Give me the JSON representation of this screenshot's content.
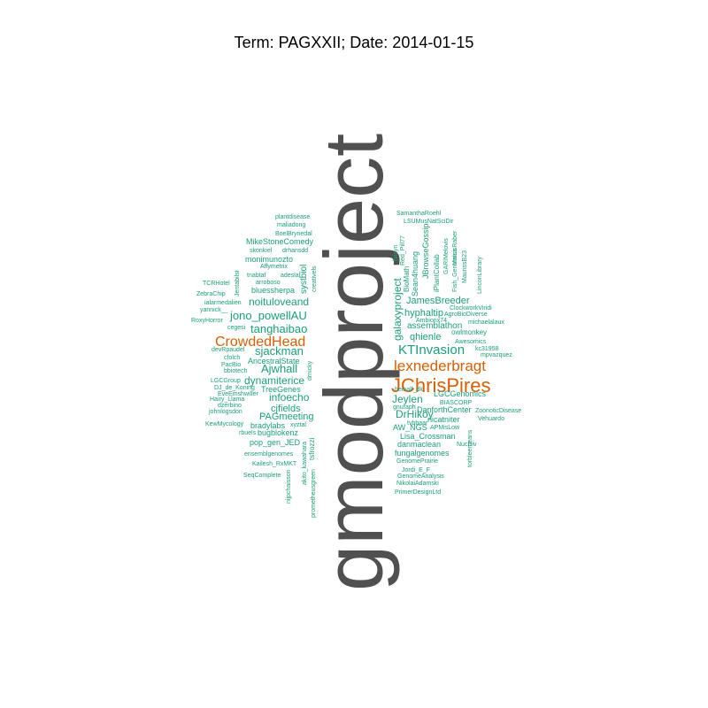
{
  "title": "Term: PAGXXII; Date: 2014-01-15",
  "colors": {
    "grey": "#505050",
    "orange": "#d95f02",
    "green": "#1b9e77"
  },
  "words": {
    "w0": "gmodproject",
    "w1": "JChrisPires",
    "w2": "lexnederbragt",
    "w3": "CrowdedHead",
    "w4": "KTInvasion",
    "w5": "galaxyproject",
    "w6": "jono_powellAU",
    "w7": "tanghaibao",
    "w8": "sjackman",
    "w9": "Ajwhall",
    "w10": "dynamiterice",
    "w11": "infoecho",
    "w12": "cjfields",
    "w13": "PAGmeeting",
    "w14": "noituloveand",
    "w15": "Jeylen",
    "w16": "DrHikoy",
    "w17": "hyphaltip",
    "w18": "qhienle",
    "w19": "JamesBreeder",
    "w20": "assemblathon",
    "w21": "systbiol",
    "w22": "bluessherpa",
    "w23": "monimunozto",
    "w24": "MikeStoneComedy",
    "w25": "bradylabs",
    "w26": "bugblokenz",
    "w27": "pop_gen_JED",
    "w28": "Lisa_Crossman",
    "w29": "danmaclean",
    "w30": "fungalgenomes",
    "w31": "AW_NGS",
    "w32": "DanforthCenter",
    "w33": "LGCGenomics",
    "w34": "TreeGenes",
    "w35": "AncestralState",
    "w36": "owlmonkey",
    "w37": "Sean4huang",
    "w38": "JBrowseGossip",
    "w39": "BioMath",
    "w40": "iPlantCollab",
    "w41": "ClockworkViridi",
    "w42": "AgroBioDiverse",
    "w43": "michaelalaux",
    "w44": "Ambiorix74",
    "w45": "Awesomics",
    "w46": "kc31958",
    "w47": "mpvazquez",
    "w48": "BIASCORP",
    "w49": "ZoonoticDisease",
    "w50": "Vehuardo",
    "w51": "APMisLow",
    "w52": "NucDiv",
    "w53": "GenomePrairie",
    "w54": "Jordi_E_F",
    "w55": "GenomeAnalysis",
    "w56": "NikolaiAdamski",
    "w57": "PrimerDesignLtd",
    "w58": "SamanthaRoehl",
    "w59": "LSUMusNatSciDir",
    "w60": "plantdisease",
    "w61": "maliadong",
    "w62": "BoelBrynedal",
    "w63": "skonkiel",
    "w64": "drhansdd",
    "w65": "Affymetrix",
    "w66": "tnabtaf",
    "w67": "adeslat",
    "w68": "arroboso",
    "w69": "TCRHotel",
    "w70": "ZebraChip",
    "w71": "ialarmedalien",
    "w72": "yannick__",
    "w73": "RoxyHorror",
    "w74": "cegesi",
    "w75": "devRpaudel",
    "w76": "cfolch",
    "w77": "PacBio",
    "w78": "bbiotech",
    "w79": "LGCGroup",
    "w80": "DJ_de_Koning",
    "w81": "EveEmshwiller",
    "w82": "Hairy_Llama",
    "w83": "dzerbino",
    "w84": "johnlogsdon",
    "w85": "KewMycology",
    "w86": "rbuels",
    "w87": "xyztal",
    "w88": "ensemblgenomes",
    "w89": "Kailesh_RxMKT",
    "w90": "SeqComplete",
    "w91": "tsfrozzi",
    "w92": "akito_kawahara",
    "w93": "prometheusgreen",
    "w94": "nijpchaisson",
    "w95": "creativels",
    "w96": "drnicky",
    "w97": "Jentabilst",
    "w98": "heinalf_dk",
    "w99": "gnuraph",
    "w100": "nicatniter",
    "w101": "tvbbaar",
    "w102": "torbleemeans",
    "w103": "Fish_Genomics",
    "w104": "MaurissB23",
    "w105": "LinconLibrary",
    "w106": "Red_Pill77",
    "w107": "bitsyn",
    "w108": "GARIMelovis",
    "w109": "MatsisRaber"
  }
}
